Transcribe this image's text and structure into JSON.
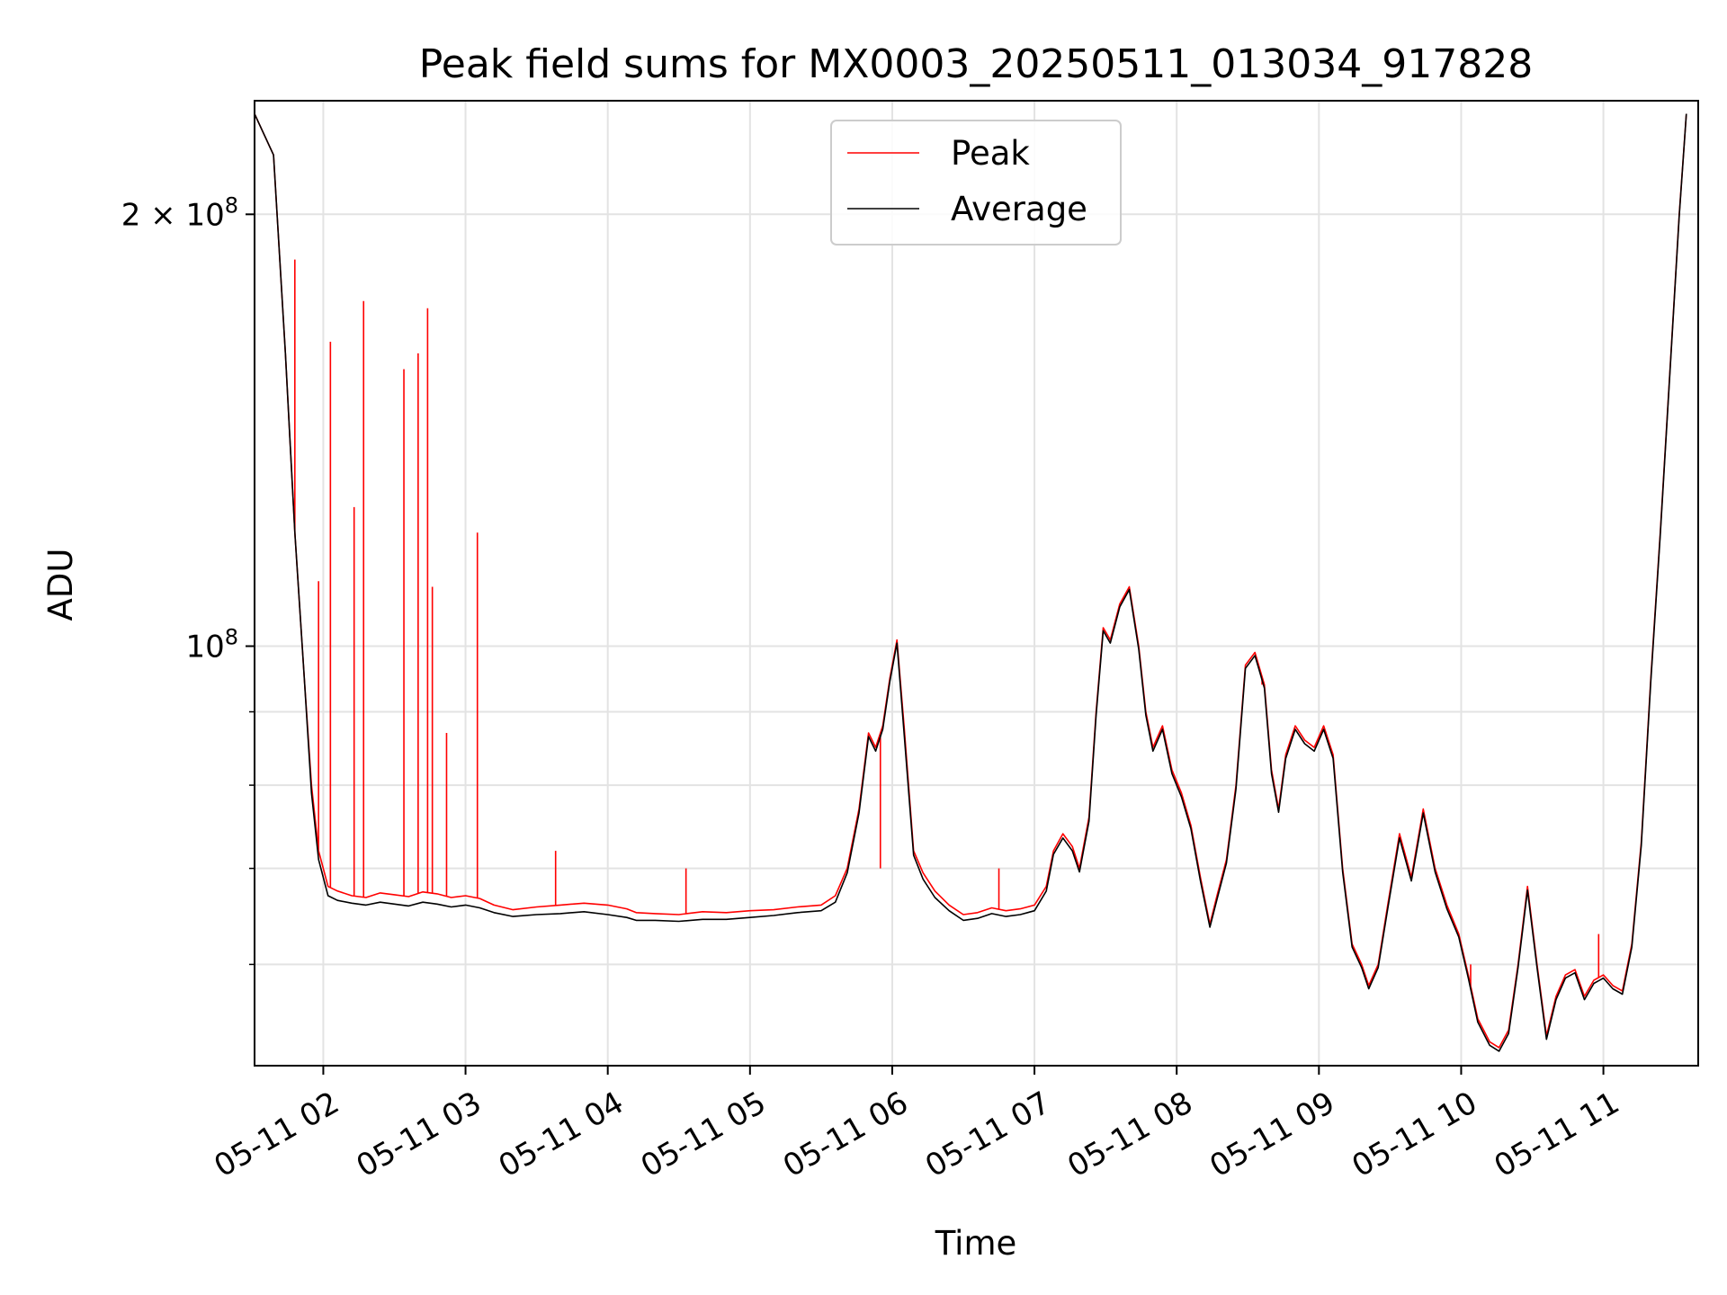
{
  "chart_data": {
    "type": "line",
    "title": "Peak field sums for MX0003_20250511_013034_917828",
    "xlabel": "Time",
    "ylabel": "ADU",
    "y_scale": "log",
    "grid": true,
    "legend_placement": "upper-center",
    "xlim": [
      "2025-05-11 01:31",
      "2025-05-11 11:40"
    ],
    "ylim": [
      51000000,
      240000000
    ],
    "x_ticks": [
      {
        "value": "2025-05-11 02:00",
        "label": "05-11 02"
      },
      {
        "value": "2025-05-11 03:00",
        "label": "05-11 03"
      },
      {
        "value": "2025-05-11 04:00",
        "label": "05-11 04"
      },
      {
        "value": "2025-05-11 05:00",
        "label": "05-11 05"
      },
      {
        "value": "2025-05-11 06:00",
        "label": "05-11 06"
      },
      {
        "value": "2025-05-11 07:00",
        "label": "05-11 07"
      },
      {
        "value": "2025-05-11 08:00",
        "label": "05-11 08"
      },
      {
        "value": "2025-05-11 09:00",
        "label": "05-11 09"
      },
      {
        "value": "2025-05-11 10:00",
        "label": "05-11 10"
      },
      {
        "value": "2025-05-11 11:00",
        "label": "05-11 11"
      }
    ],
    "y_major_ticks": [
      {
        "value": 100000000,
        "base": "10",
        "exp": "8"
      },
      {
        "value": 200000000,
        "base": "2 × 10",
        "exp": "8"
      }
    ],
    "y_minor_ticks": [
      60000000,
      70000000,
      80000000,
      90000000
    ],
    "series": [
      {
        "name": "Peak",
        "color": "#ff0000",
        "x": [
          "2025-05-11 01:31",
          "2025-05-11 01:39",
          "2025-05-11 01:44",
          "2025-05-11 01:48",
          "2025-05-11 01:52",
          "2025-05-11 01:55",
          "2025-05-11 01:58",
          "2025-05-11 02:02",
          "2025-05-11 02:06",
          "2025-05-11 02:12",
          "2025-05-11 02:18",
          "2025-05-11 02:24",
          "2025-05-11 02:30",
          "2025-05-11 02:36",
          "2025-05-11 02:42",
          "2025-05-11 02:48",
          "2025-05-11 02:54",
          "2025-05-11 03:00",
          "2025-05-11 03:06",
          "2025-05-11 03:12",
          "2025-05-11 03:20",
          "2025-05-11 03:30",
          "2025-05-11 03:40",
          "2025-05-11 03:50",
          "2025-05-11 04:00",
          "2025-05-11 04:08",
          "2025-05-11 04:12",
          "2025-05-11 04:20",
          "2025-05-11 04:30",
          "2025-05-11 04:40",
          "2025-05-11 04:50",
          "2025-05-11 05:00",
          "2025-05-11 05:10",
          "2025-05-11 05:20",
          "2025-05-11 05:30",
          "2025-05-11 05:36",
          "2025-05-11 05:41",
          "2025-05-11 05:46",
          "2025-05-11 05:50",
          "2025-05-11 05:53",
          "2025-05-11 05:56",
          "2025-05-11 05:59",
          "2025-05-11 06:02",
          "2025-05-11 06:05",
          "2025-05-11 06:09",
          "2025-05-11 06:13",
          "2025-05-11 06:18",
          "2025-05-11 06:24",
          "2025-05-11 06:30",
          "2025-05-11 06:36",
          "2025-05-11 06:42",
          "2025-05-11 06:48",
          "2025-05-11 06:54",
          "2025-05-11 07:00",
          "2025-05-11 07:05",
          "2025-05-11 07:08",
          "2025-05-11 07:12",
          "2025-05-11 07:16",
          "2025-05-11 07:19",
          "2025-05-11 07:23",
          "2025-05-11 07:26",
          "2025-05-11 07:29",
          "2025-05-11 07:32",
          "2025-05-11 07:36",
          "2025-05-11 07:40",
          "2025-05-11 07:44",
          "2025-05-11 07:47",
          "2025-05-11 07:50",
          "2025-05-11 07:54",
          "2025-05-11 07:58",
          "2025-05-11 08:02",
          "2025-05-11 08:06",
          "2025-05-11 08:10",
          "2025-05-11 08:14",
          "2025-05-11 08:17",
          "2025-05-11 08:21",
          "2025-05-11 08:25",
          "2025-05-11 08:29",
          "2025-05-11 08:33",
          "2025-05-11 08:37",
          "2025-05-11 08:40",
          "2025-05-11 08:43",
          "2025-05-11 08:46",
          "2025-05-11 08:50",
          "2025-05-11 08:54",
          "2025-05-11 08:58",
          "2025-05-11 09:02",
          "2025-05-11 09:06",
          "2025-05-11 09:10",
          "2025-05-11 09:14",
          "2025-05-11 09:18",
          "2025-05-11 09:21",
          "2025-05-11 09:25",
          "2025-05-11 09:29",
          "2025-05-11 09:34",
          "2025-05-11 09:39",
          "2025-05-11 09:44",
          "2025-05-11 09:49",
          "2025-05-11 09:54",
          "2025-05-11 09:59",
          "2025-05-11 10:03",
          "2025-05-11 10:07",
          "2025-05-11 10:12",
          "2025-05-11 10:16",
          "2025-05-11 10:20",
          "2025-05-11 10:24",
          "2025-05-11 10:28",
          "2025-05-11 10:32",
          "2025-05-11 10:36",
          "2025-05-11 10:40",
          "2025-05-11 10:44",
          "2025-05-11 10:48",
          "2025-05-11 10:52",
          "2025-05-11 10:56",
          "2025-05-11 11:00",
          "2025-05-11 11:04",
          "2025-05-11 11:08",
          "2025-05-11 11:12",
          "2025-05-11 11:16",
          "2025-05-11 11:20",
          "2025-05-11 11:24",
          "2025-05-11 11:28",
          "2025-05-11 11:32",
          "2025-05-11 11:35"
        ],
        "y": [
          235000000,
          220000000,
          160000000,
          120000000,
          95000000,
          80000000,
          72000000,
          68000000,
          67500000,
          67000000,
          66800000,
          67300000,
          67100000,
          66900000,
          67400000,
          67200000,
          66800000,
          67000000,
          66700000,
          66000000,
          65500000,
          65800000,
          66000000,
          66200000,
          66000000,
          65600000,
          65200000,
          65100000,
          65000000,
          65300000,
          65200000,
          65400000,
          65500000,
          65800000,
          66000000,
          67000000,
          70000000,
          77000000,
          87000000,
          85000000,
          88000000,
          95000000,
          101000000,
          88000000,
          72000000,
          69500000,
          67500000,
          66000000,
          65000000,
          65200000,
          65700000,
          65400000,
          65600000,
          66000000,
          68000000,
          72000000,
          74000000,
          72500000,
          70000000,
          76000000,
          90000000,
          103000000,
          101000000,
          107000000,
          110000000,
          100000000,
          90000000,
          85000000,
          88000000,
          82000000,
          79000000,
          75000000,
          69000000,
          64000000,
          67000000,
          71000000,
          80000000,
          97000000,
          99000000,
          94000000,
          82000000,
          77000000,
          84000000,
          88000000,
          86000000,
          85000000,
          88000000,
          84000000,
          70000000,
          62000000,
          60000000,
          58000000,
          60000000,
          66000000,
          74000000,
          69000000,
          77000000,
          70000000,
          66000000,
          63000000,
          59000000,
          55000000,
          53000000,
          52500000,
          54000000,
          60000000,
          68000000,
          60000000,
          53500000,
          57000000,
          59000000,
          59500000,
          57000000,
          58500000,
          59000000,
          58000000,
          57500000,
          62000000,
          73000000,
          95000000,
          120000000,
          155000000,
          200000000,
          235000000
        ]
      },
      {
        "name": "Average",
        "color": "#000000",
        "x": [
          "2025-05-11 01:31",
          "2025-05-11 01:39",
          "2025-05-11 01:44",
          "2025-05-11 01:48",
          "2025-05-11 01:52",
          "2025-05-11 01:55",
          "2025-05-11 01:58",
          "2025-05-11 02:02",
          "2025-05-11 02:06",
          "2025-05-11 02:12",
          "2025-05-11 02:18",
          "2025-05-11 02:24",
          "2025-05-11 02:30",
          "2025-05-11 02:36",
          "2025-05-11 02:42",
          "2025-05-11 02:48",
          "2025-05-11 02:54",
          "2025-05-11 03:00",
          "2025-05-11 03:06",
          "2025-05-11 03:12",
          "2025-05-11 03:20",
          "2025-05-11 03:30",
          "2025-05-11 03:40",
          "2025-05-11 03:50",
          "2025-05-11 04:00",
          "2025-05-11 04:08",
          "2025-05-11 04:12",
          "2025-05-11 04:20",
          "2025-05-11 04:30",
          "2025-05-11 04:40",
          "2025-05-11 04:50",
          "2025-05-11 05:00",
          "2025-05-11 05:10",
          "2025-05-11 05:20",
          "2025-05-11 05:30",
          "2025-05-11 05:36",
          "2025-05-11 05:41",
          "2025-05-11 05:46",
          "2025-05-11 05:50",
          "2025-05-11 05:53",
          "2025-05-11 05:56",
          "2025-05-11 05:59",
          "2025-05-11 06:02",
          "2025-05-11 06:05",
          "2025-05-11 06:09",
          "2025-05-11 06:13",
          "2025-05-11 06:18",
          "2025-05-11 06:24",
          "2025-05-11 06:30",
          "2025-05-11 06:36",
          "2025-05-11 06:42",
          "2025-05-11 06:48",
          "2025-05-11 06:54",
          "2025-05-11 07:00",
          "2025-05-11 07:05",
          "2025-05-11 07:08",
          "2025-05-11 07:12",
          "2025-05-11 07:16",
          "2025-05-11 07:19",
          "2025-05-11 07:23",
          "2025-05-11 07:26",
          "2025-05-11 07:29",
          "2025-05-11 07:32",
          "2025-05-11 07:36",
          "2025-05-11 07:40",
          "2025-05-11 07:44",
          "2025-05-11 07:47",
          "2025-05-11 07:50",
          "2025-05-11 07:54",
          "2025-05-11 07:58",
          "2025-05-11 08:02",
          "2025-05-11 08:06",
          "2025-05-11 08:10",
          "2025-05-11 08:14",
          "2025-05-11 08:17",
          "2025-05-11 08:21",
          "2025-05-11 08:25",
          "2025-05-11 08:29",
          "2025-05-11 08:33",
          "2025-05-11 08:37",
          "2025-05-11 08:40",
          "2025-05-11 08:43",
          "2025-05-11 08:46",
          "2025-05-11 08:50",
          "2025-05-11 08:54",
          "2025-05-11 08:58",
          "2025-05-11 09:02",
          "2025-05-11 09:06",
          "2025-05-11 09:10",
          "2025-05-11 09:14",
          "2025-05-11 09:18",
          "2025-05-11 09:21",
          "2025-05-11 09:25",
          "2025-05-11 09:29",
          "2025-05-11 09:34",
          "2025-05-11 09:39",
          "2025-05-11 09:44",
          "2025-05-11 09:49",
          "2025-05-11 09:54",
          "2025-05-11 09:59",
          "2025-05-11 10:03",
          "2025-05-11 10:07",
          "2025-05-11 10:12",
          "2025-05-11 10:16",
          "2025-05-11 10:20",
          "2025-05-11 10:24",
          "2025-05-11 10:28",
          "2025-05-11 10:32",
          "2025-05-11 10:36",
          "2025-05-11 10:40",
          "2025-05-11 10:44",
          "2025-05-11 10:48",
          "2025-05-11 10:52",
          "2025-05-11 10:56",
          "2025-05-11 11:00",
          "2025-05-11 11:04",
          "2025-05-11 11:08",
          "2025-05-11 11:12",
          "2025-05-11 11:16",
          "2025-05-11 11:20",
          "2025-05-11 11:24",
          "2025-05-11 11:28",
          "2025-05-11 11:32",
          "2025-05-11 11:35"
        ],
        "y": [
          235000000,
          220000000,
          160000000,
          120000000,
          95000000,
          79000000,
          71000000,
          67000000,
          66500000,
          66200000,
          66000000,
          66300000,
          66100000,
          65900000,
          66300000,
          66100000,
          65800000,
          66000000,
          65700000,
          65200000,
          64800000,
          65000000,
          65100000,
          65300000,
          65000000,
          64700000,
          64400000,
          64400000,
          64300000,
          64500000,
          64500000,
          64700000,
          64900000,
          65200000,
          65400000,
          66300000,
          69500000,
          76500000,
          86500000,
          84500000,
          87500000,
          94500000,
          100500000,
          87000000,
          71500000,
          68800000,
          66800000,
          65400000,
          64400000,
          64600000,
          65100000,
          64800000,
          65000000,
          65400000,
          67500000,
          71600000,
          73500000,
          72000000,
          69600000,
          75500000,
          89500000,
          102500000,
          100500000,
          106500000,
          109500000,
          99500000,
          89500000,
          84500000,
          87500000,
          81500000,
          78500000,
          74600000,
          68600000,
          63700000,
          66600000,
          70600000,
          79500000,
          96500000,
          98500000,
          93500000,
          81500000,
          76600000,
          83500000,
          87500000,
          85500000,
          84500000,
          87500000,
          83500000,
          69600000,
          61700000,
          59700000,
          57700000,
          59700000,
          65600000,
          73500000,
          68600000,
          76500000,
          69600000,
          65600000,
          62700000,
          58700000,
          54700000,
          52700000,
          52200000,
          53700000,
          59700000,
          67600000,
          59700000,
          53200000,
          56700000,
          58700000,
          59200000,
          56700000,
          58200000,
          58700000,
          57700000,
          57200000,
          61700000,
          72600000,
          94500000,
          119500000,
          154500000,
          199500000,
          235000000
        ]
      }
    ],
    "spikes": {
      "series": "Peak",
      "x": [
        "2025-05-11 01:48",
        "2025-05-11 01:58",
        "2025-05-11 02:03",
        "2025-05-11 02:13",
        "2025-05-11 02:17",
        "2025-05-11 02:34",
        "2025-05-11 02:40",
        "2025-05-11 02:44",
        "2025-05-11 02:46",
        "2025-05-11 02:52",
        "2025-05-11 03:05",
        "2025-05-11 03:38",
        "2025-05-11 04:33",
        "2025-05-11 05:55",
        "2025-05-11 06:45",
        "2025-05-11 08:36",
        "2025-05-11 10:04",
        "2025-05-11 10:58"
      ],
      "y": [
        186000000,
        111000000,
        163000000,
        125000000,
        174000000,
        156000000,
        160000000,
        172000000,
        110000000,
        87000000,
        120000000,
        72000000,
        70000000,
        70000000,
        70000000,
        94000000,
        60000000,
        63000000
      ]
    }
  },
  "legend": {
    "items": [
      {
        "label": "Peak",
        "color": "#ff0000"
      },
      {
        "label": "Average",
        "color": "#000000"
      }
    ]
  }
}
